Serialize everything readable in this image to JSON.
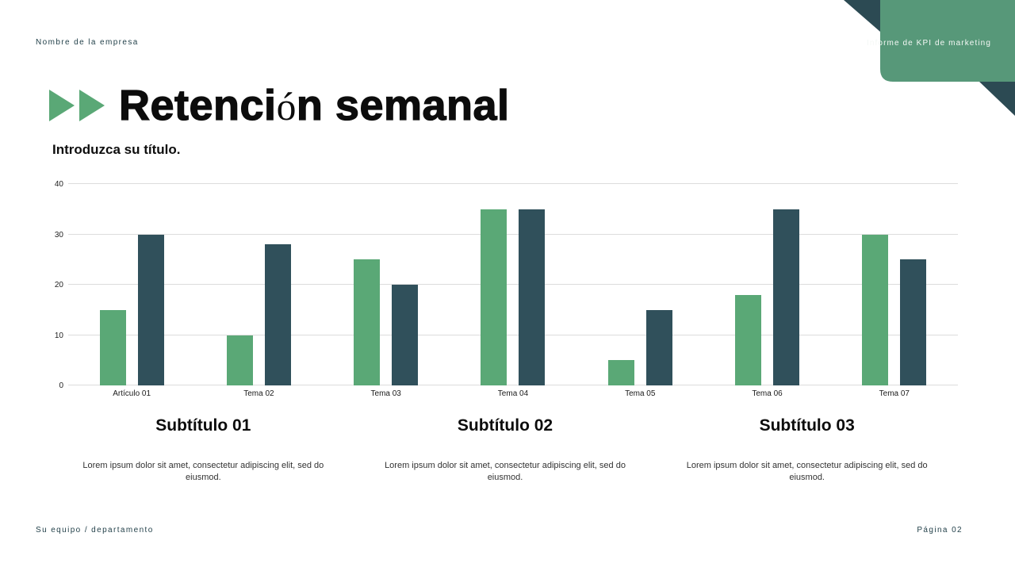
{
  "header": {
    "company": "Nombre de la empresa",
    "report": "Informe de KPI de marketing"
  },
  "title": {
    "full": "Retención semanal",
    "part1": "Retenci",
    "accent": "ó",
    "part2": "n semanal",
    "subtitle": "Introduzca su título."
  },
  "chart_data": {
    "type": "bar",
    "title": "Introduzca su título.",
    "categories": [
      "Artículo 01",
      "Tema 02",
      "Tema 03",
      "Tema 04",
      "Tema 05",
      "Tema 06",
      "Tema 07"
    ],
    "series": [
      {
        "name": "series-1",
        "color": "#5AA876",
        "values": [
          15,
          10,
          25,
          35,
          5,
          18,
          30
        ]
      },
      {
        "name": "series-2",
        "color": "#30505B",
        "values": [
          30,
          28,
          20,
          35,
          15,
          35,
          25
        ]
      }
    ],
    "xlabel": "",
    "ylabel": "",
    "ylim": [
      0,
      40
    ],
    "yticks": [
      0,
      10,
      20,
      30,
      40
    ],
    "grid": true,
    "legend": "none"
  },
  "sections": [
    {
      "subtitle": "Subtítulo 01",
      "body": "Lorem ipsum dolor sit amet, consectetur adipiscing elit, sed do eiusmod."
    },
    {
      "subtitle": "Subtítulo 02",
      "body": "Lorem ipsum dolor sit amet, consectetur adipiscing elit, sed do eiusmod."
    },
    {
      "subtitle": "Subtítulo 03",
      "body": "Lorem ipsum dolor sit amet, consectetur adipiscing elit, sed do eiusmod."
    }
  ],
  "footer": {
    "left": "Su equipo / departamento",
    "right": "Página 02"
  },
  "colors": {
    "bar_green": "#5AA876",
    "bar_dark": "#30505B",
    "banner_green": "#579879",
    "triangle_dark": "#2C4A53"
  }
}
